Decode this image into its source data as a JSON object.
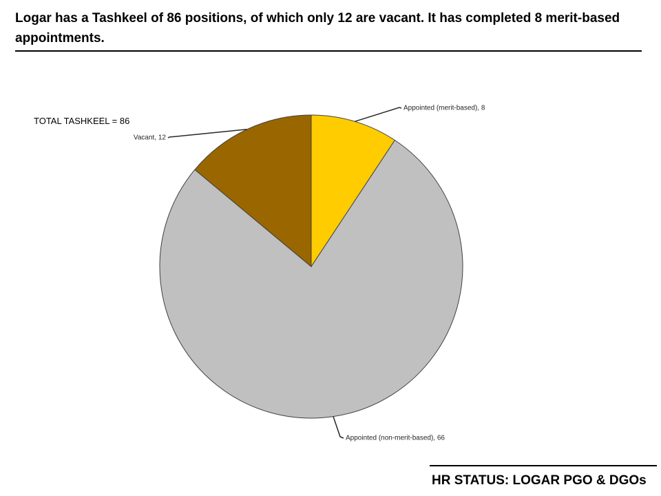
{
  "heading": "Logar has a Tashkeel of 86 positions, of which only 12 are vacant. It has completed 8 merit-based appointments.",
  "total_label": "TOTAL TASHKEEL = 86",
  "footer_title": "HR STATUS: LOGAR PGO & DGOs",
  "colors": {
    "merit": "#ffcc00",
    "non_merit": "#c0c0c0",
    "vacant": "#996600",
    "outline": "#404040"
  },
  "chart_data": {
    "type": "pie",
    "title": "",
    "start_angle_deg": 0,
    "direction": "clockwise",
    "slices": [
      {
        "label": "Appointed (merit-based), 8",
        "category": "Appointed (merit-based)",
        "value": 8,
        "color": "#ffcc00"
      },
      {
        "label": "Appointed (non-merit-based), 66",
        "category": "Appointed (non-merit-based)",
        "value": 66,
        "color": "#c0c0c0"
      },
      {
        "label": "Vacant, 12",
        "category": "Vacant",
        "value": 12,
        "color": "#996600"
      }
    ],
    "total": 86,
    "data_labels": "category, value",
    "legend": "none"
  }
}
